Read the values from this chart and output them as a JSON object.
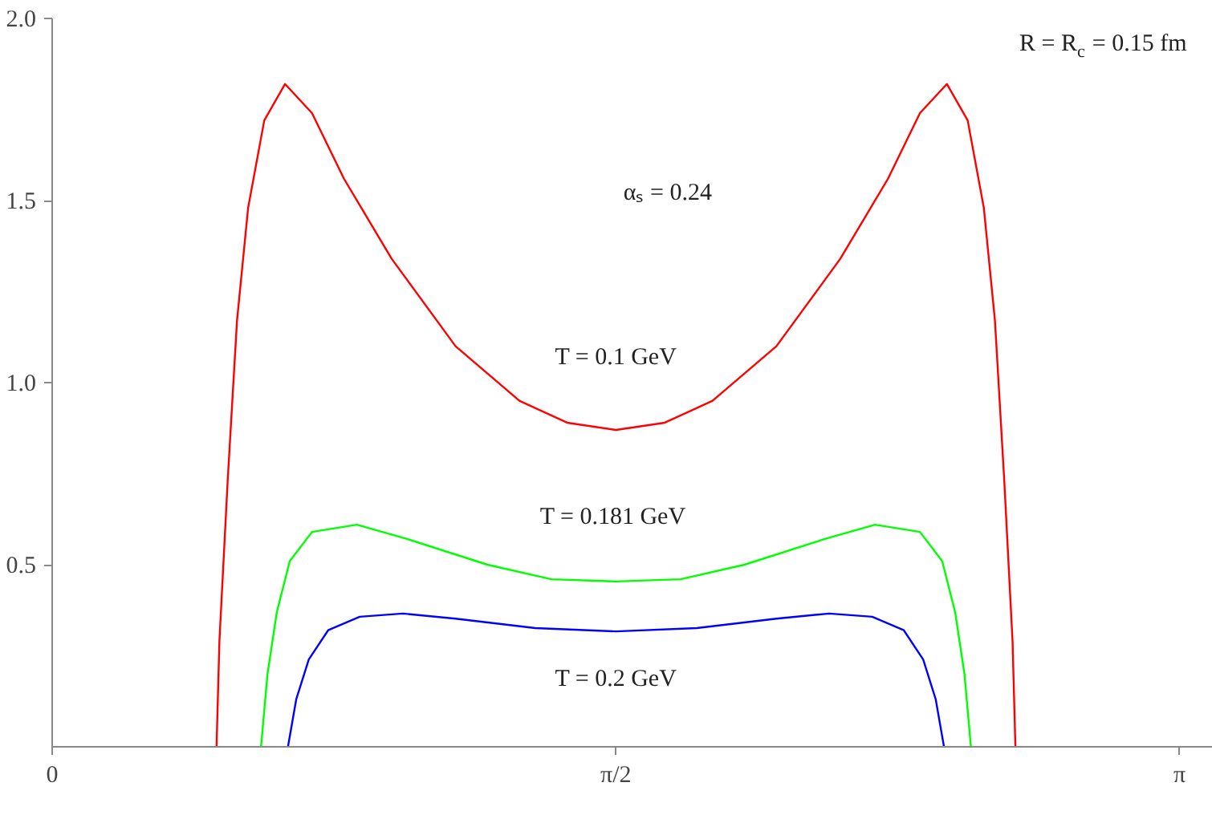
{
  "chart_data": {
    "type": "line",
    "xlim": [
      0,
      3.234
    ],
    "ylim": [
      0,
      2.0
    ],
    "xticks": [
      0,
      {
        "value": 1.5708,
        "label": "π/2"
      },
      {
        "value": 3.1416,
        "label": "π"
      }
    ],
    "yticks": [
      0.5,
      {
        "value": 1.0,
        "label": "1.0"
      },
      1.5,
      {
        "value": 2.0,
        "label": "2.0"
      }
    ],
    "grid": false,
    "legend": false,
    "marker": "none",
    "line_style": "solid",
    "annotations": [
      "R = R$_{c}$ = 0.15 fm",
      "αₛ =  0.24"
    ],
    "series": [
      {
        "name": "T = 0.1 GeV",
        "color": "#ff0000",
        "x": [
          0.458,
          0.466,
          0.489,
          0.515,
          0.546,
          0.591,
          0.649,
          0.724,
          0.813,
          0.946,
          1.124,
          1.302,
          1.435,
          1.571,
          1.707,
          1.84,
          2.018,
          2.196,
          2.329,
          2.418,
          2.493,
          2.551,
          2.596,
          2.627,
          2.653,
          2.676,
          2.684
        ],
        "values": [
          0,
          0.29,
          0.73,
          1.17,
          1.48,
          1.72,
          1.82,
          1.74,
          1.56,
          1.34,
          1.1,
          0.95,
          0.89,
          0.87,
          0.89,
          0.95,
          1.1,
          1.34,
          1.56,
          1.74,
          1.82,
          1.72,
          1.48,
          1.17,
          0.73,
          0.29,
          0
        ]
      },
      {
        "name": "T = 0.181  GeV",
        "color": "#00ff00",
        "x": [
          0.582,
          0.6,
          0.626,
          0.662,
          0.724,
          0.849,
          0.991,
          1.213,
          1.391,
          1.571,
          1.751,
          1.929,
          2.151,
          2.293,
          2.418,
          2.48,
          2.516,
          2.542,
          2.56
        ],
        "values": [
          0,
          0.2,
          0.37,
          0.51,
          0.59,
          0.61,
          0.57,
          0.5,
          0.46,
          0.454,
          0.46,
          0.5,
          0.57,
          0.61,
          0.59,
          0.51,
          0.37,
          0.2,
          0
        ]
      },
      {
        "name": "T = 0.2 GeV",
        "color": "#0000ff",
        "x": [
          0.657,
          0.68,
          0.715,
          0.769,
          0.857,
          0.977,
          1.124,
          1.346,
          1.571,
          1.796,
          2.018,
          2.165,
          2.285,
          2.373,
          2.427,
          2.462,
          2.485
        ],
        "values": [
          0,
          0.13,
          0.24,
          0.32,
          0.357,
          0.366,
          0.352,
          0.326,
          0.317,
          0.326,
          0.352,
          0.366,
          0.357,
          0.32,
          0.24,
          0.13,
          0
        ]
      }
    ]
  }
}
